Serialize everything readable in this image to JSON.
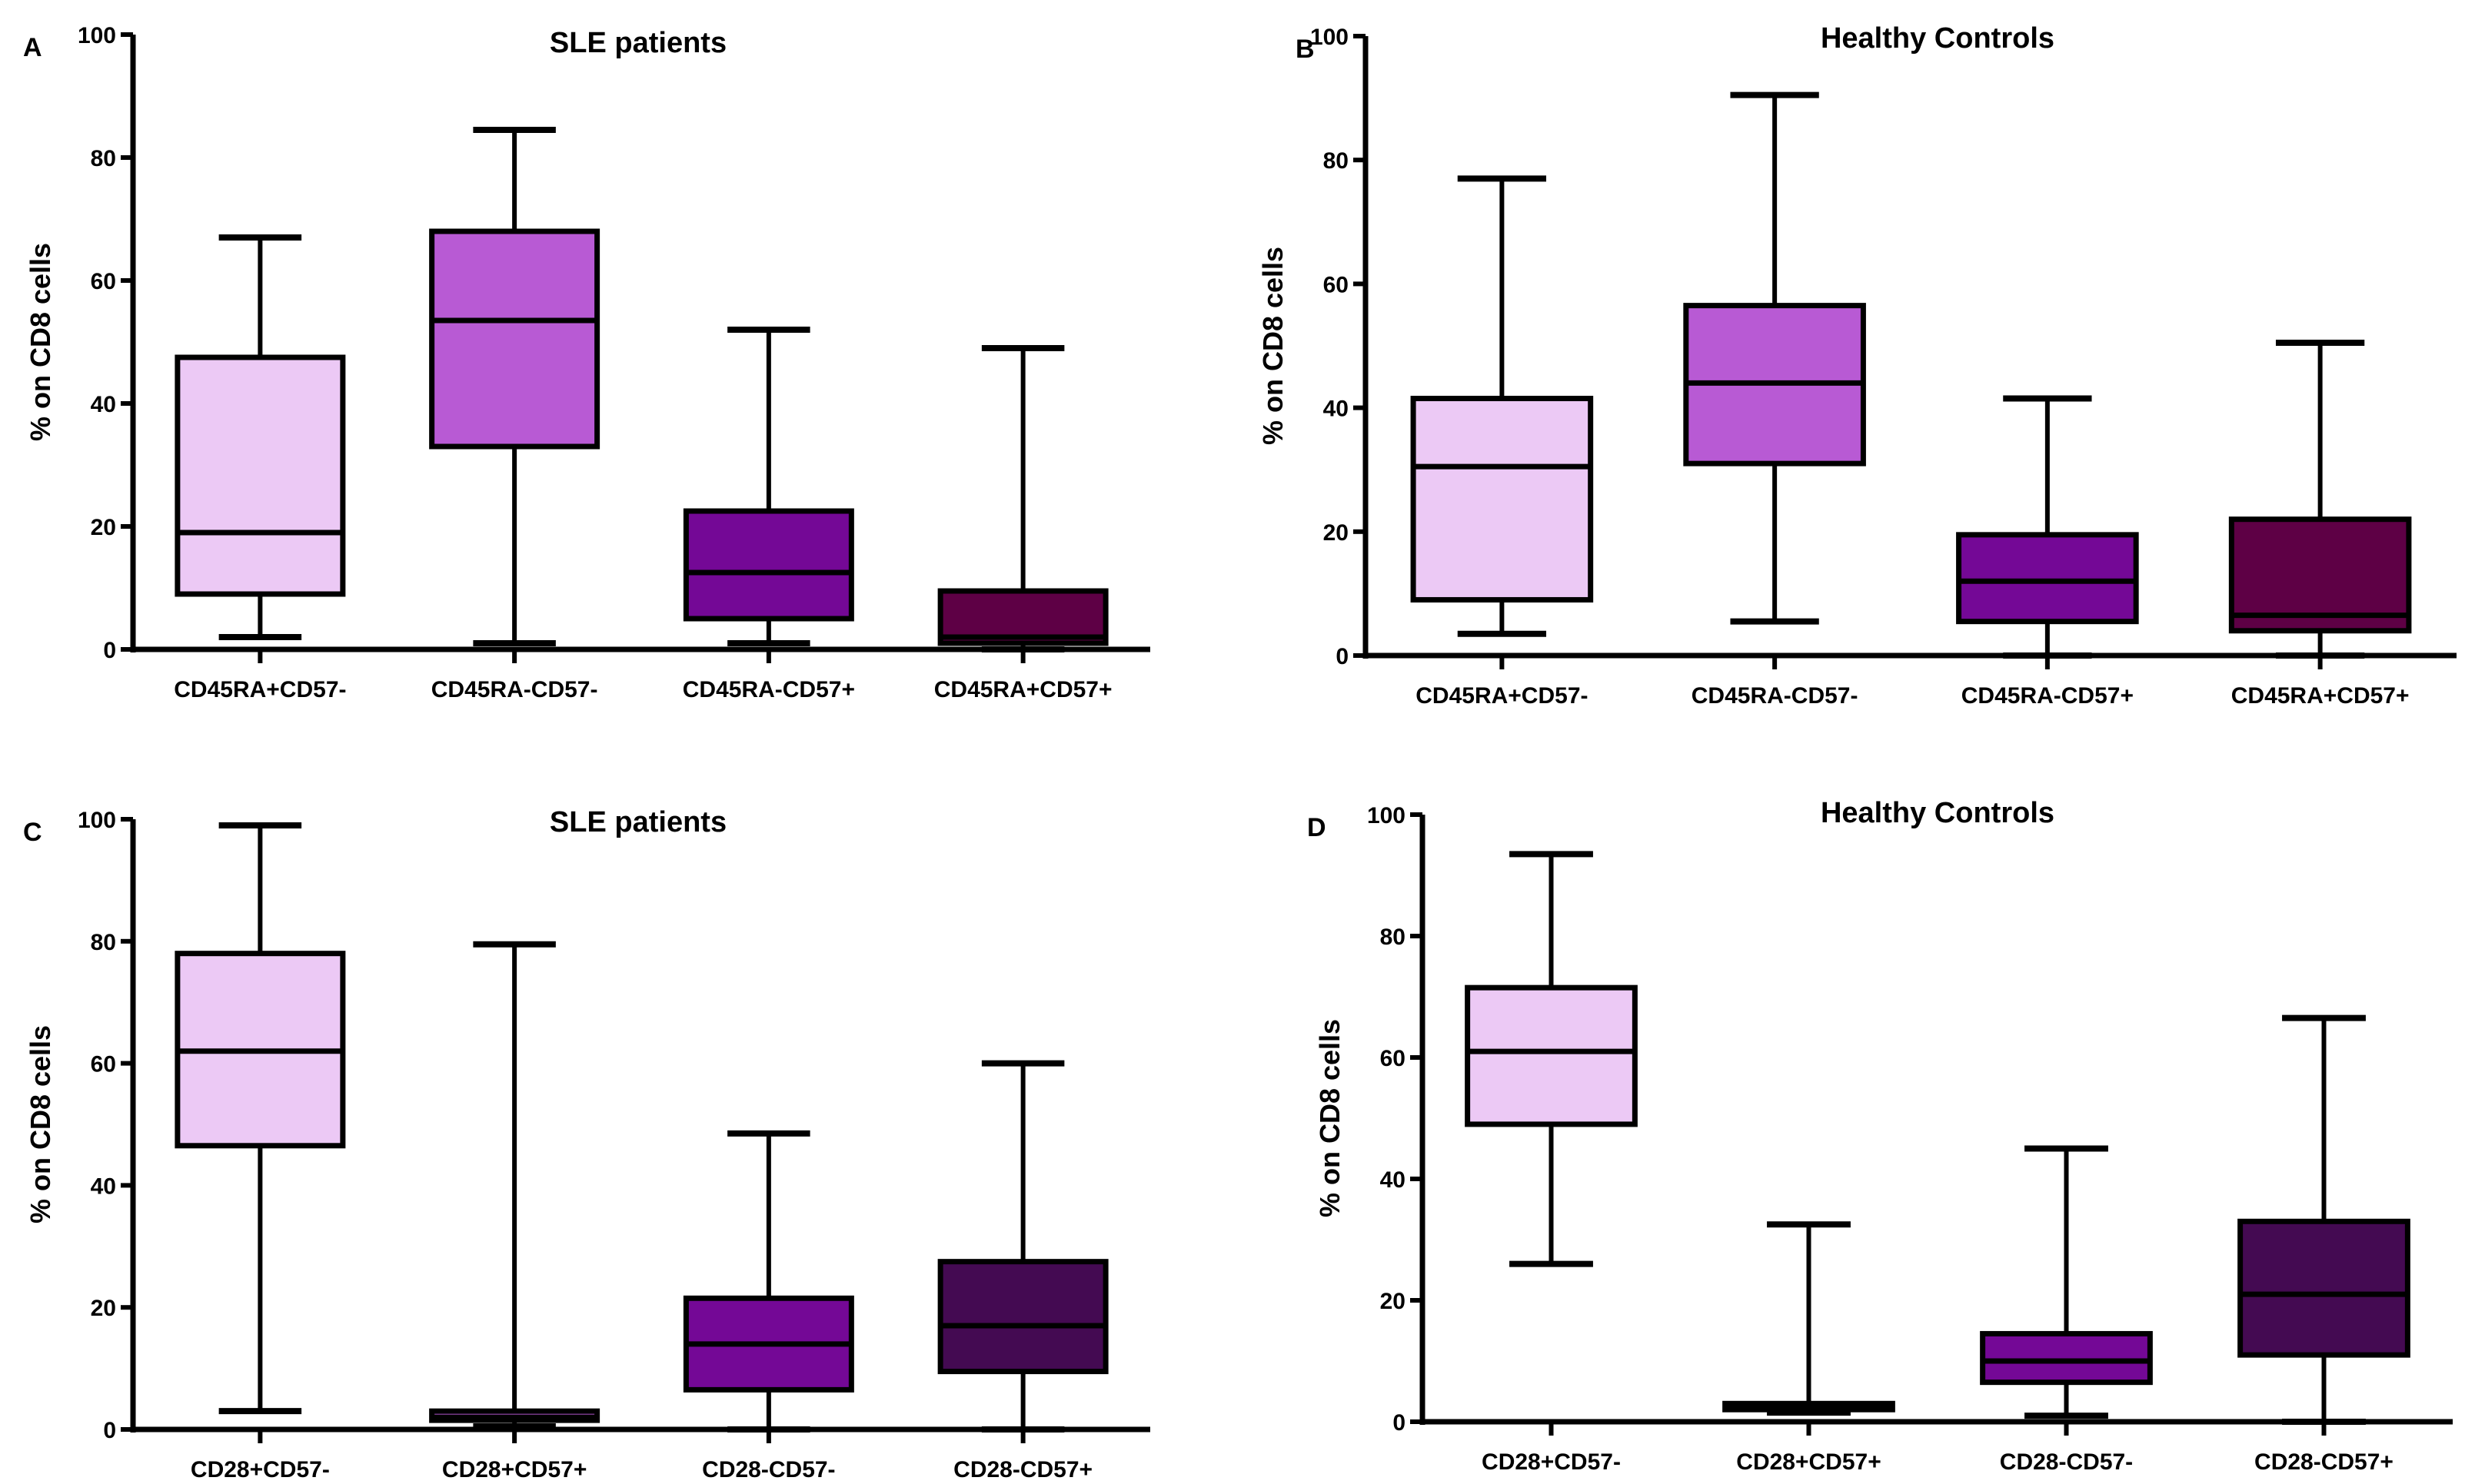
{
  "colors": {
    "light": "#ecc9f5",
    "medium": "#b85ad4",
    "purple": "#740896",
    "maroon": "#5e0045",
    "darkpurple": "#440a52"
  },
  "chart_data": [
    {
      "type": "box",
      "panel_label": "A",
      "title": "SLE patients",
      "ylabel": "% on CD8 cells",
      "ylim": [
        0,
        100
      ],
      "yticks": [
        "0",
        "20",
        "40",
        "60",
        "80",
        "100"
      ],
      "categories": [
        "CD45RA+CD57-",
        "CD45RA-CD57-",
        "CD45RA-CD57+",
        "CD45RA+CD57+"
      ],
      "box_colors": [
        "#ecc9f5",
        "#b85ad4",
        "#740896",
        "#5e0045"
      ],
      "boxes": [
        {
          "min": 2,
          "q1": 9,
          "median": 19,
          "q3": 47.5,
          "max": 67
        },
        {
          "min": 1,
          "q1": 33,
          "median": 53.5,
          "q3": 68,
          "max": 84.5
        },
        {
          "min": 1,
          "q1": 5,
          "median": 12.5,
          "q3": 22.5,
          "max": 52
        },
        {
          "min": 0,
          "q1": 1,
          "median": 2,
          "q3": 9.5,
          "max": 49
        }
      ]
    },
    {
      "type": "box",
      "panel_label": "B",
      "title": "Healthy Controls",
      "ylabel": "% on CD8 cells",
      "ylim": [
        0,
        100
      ],
      "yticks": [
        "0",
        "20",
        "40",
        "60",
        "80",
        "100"
      ],
      "categories": [
        "CD45RA+CD57-",
        "CD45RA-CD57-",
        "CD45RA-CD57+",
        "CD45RA+CD57+"
      ],
      "box_colors": [
        "#ecc9f5",
        "#b85ad4",
        "#740896",
        "#5e0045"
      ],
      "boxes": [
        {
          "min": 3.5,
          "q1": 9,
          "median": 30.5,
          "q3": 41.5,
          "max": 77
        },
        {
          "min": 5.5,
          "q1": 31,
          "median": 44,
          "q3": 56.5,
          "max": 90.5
        },
        {
          "min": 0,
          "q1": 5.5,
          "median": 12,
          "q3": 19.5,
          "max": 41.5
        },
        {
          "min": 0,
          "q1": 4,
          "median": 6.5,
          "q3": 22,
          "max": 50.5
        }
      ]
    },
    {
      "type": "box",
      "panel_label": "C",
      "title": "SLE patients",
      "ylabel": "% on CD8 cells",
      "ylim": [
        0,
        100
      ],
      "yticks": [
        "0",
        "20",
        "40",
        "60",
        "80",
        "100"
      ],
      "categories": [
        "CD28+CD57-",
        "CD28+CD57+",
        "CD28-CD57-",
        "CD28-CD57+"
      ],
      "box_colors": [
        "#ecc9f5",
        "#b85ad4",
        "#740896",
        "#440a52"
      ],
      "boxes": [
        {
          "min": 3,
          "q1": 46.5,
          "median": 62,
          "q3": 78,
          "max": 99
        },
        {
          "min": 0.5,
          "q1": 1.5,
          "median": 2,
          "q3": 3,
          "max": 79.5
        },
        {
          "min": 0,
          "q1": 6.5,
          "median": 14,
          "q3": 21.5,
          "max": 48.5
        },
        {
          "min": 0,
          "q1": 9.5,
          "median": 17,
          "q3": 27.5,
          "max": 60
        }
      ]
    },
    {
      "type": "box",
      "panel_label": "D",
      "title": "Healthy Controls",
      "ylabel": "% on CD8 cells",
      "ylim": [
        0,
        100
      ],
      "yticks": [
        "0",
        "20",
        "40",
        "60",
        "80",
        "100"
      ],
      "categories": [
        "CD28+CD57-",
        "CD28+CD57+",
        "CD28-CD57-",
        "CD28-CD57+"
      ],
      "box_colors": [
        "#ecc9f5",
        "#b85ad4",
        "#740896",
        "#440a52"
      ],
      "boxes": [
        {
          "min": 26,
          "q1": 49,
          "median": 61,
          "q3": 71.5,
          "max": 93.5
        },
        {
          "min": 1.5,
          "q1": 2,
          "median": 2.5,
          "q3": 3,
          "max": 32.5
        },
        {
          "min": 1,
          "q1": 6.5,
          "median": 10,
          "q3": 14.5,
          "max": 45
        },
        {
          "min": 0,
          "q1": 11,
          "median": 21,
          "q3": 33,
          "max": 66.5
        }
      ]
    }
  ]
}
